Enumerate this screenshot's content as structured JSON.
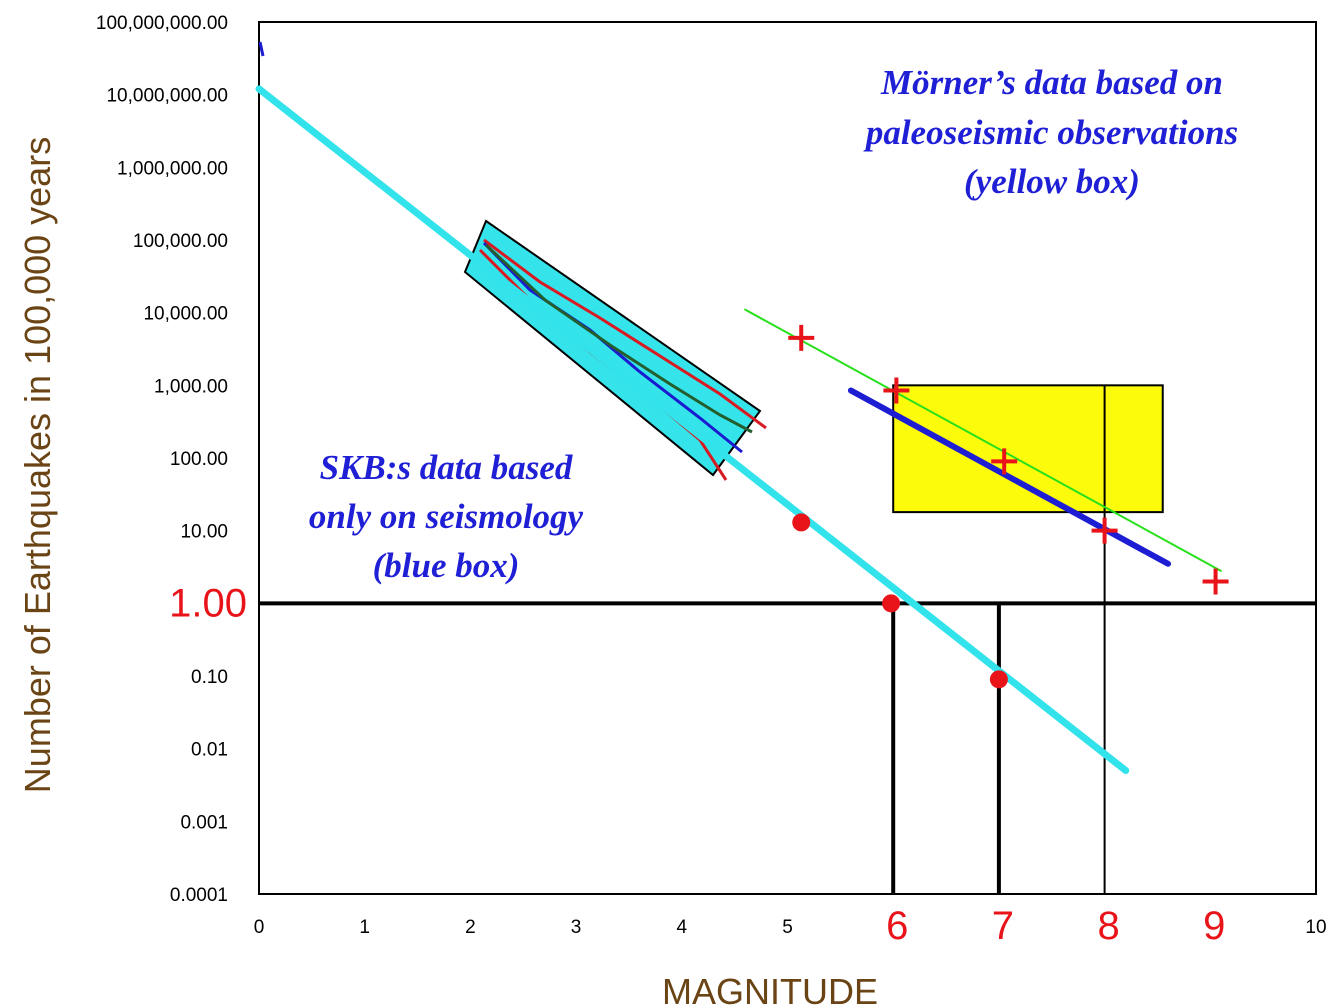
{
  "chart_data": {
    "type": "line",
    "title": "",
    "xlabel": "MAGNITUDE",
    "ylabel": "Number of Earthquakes in 100,000  years",
    "xlim": [
      0,
      10
    ],
    "ylim": [
      0.0001,
      100000000
    ],
    "yscale": "log",
    "grid": false,
    "x_ticks": [
      {
        "value": 0,
        "label": "0",
        "emphasized": false
      },
      {
        "value": 1,
        "label": "1",
        "emphasized": false
      },
      {
        "value": 2,
        "label": "2",
        "emphasized": false
      },
      {
        "value": 3,
        "label": "3",
        "emphasized": false
      },
      {
        "value": 4,
        "label": "4",
        "emphasized": false
      },
      {
        "value": 5,
        "label": "5",
        "emphasized": false
      },
      {
        "value": 6,
        "label": "6",
        "emphasized": true
      },
      {
        "value": 7,
        "label": "7",
        "emphasized": true
      },
      {
        "value": 8,
        "label": "8",
        "emphasized": true
      },
      {
        "value": 9,
        "label": "9",
        "emphasized": true
      },
      {
        "value": 10,
        "label": "10",
        "emphasized": false
      }
    ],
    "y_ticks": [
      {
        "value": 100000000,
        "label": "100,000,000.00",
        "emphasized": false
      },
      {
        "value": 10000000,
        "label": "10,000,000.00",
        "emphasized": false
      },
      {
        "value": 1000000,
        "label": "1,000,000.00",
        "emphasized": false
      },
      {
        "value": 100000,
        "label": "100,000.00",
        "emphasized": false
      },
      {
        "value": 10000,
        "label": "10,000.00",
        "emphasized": false
      },
      {
        "value": 1000,
        "label": "1,000.00",
        "emphasized": false
      },
      {
        "value": 100,
        "label": "100.00",
        "emphasized": false
      },
      {
        "value": 10,
        "label": "10.00",
        "emphasized": false
      },
      {
        "value": 1,
        "label": "1.00",
        "emphasized": true
      },
      {
        "value": 0.1,
        "label": "0.10",
        "emphasized": false
      },
      {
        "value": 0.01,
        "label": "0.01",
        "emphasized": false
      },
      {
        "value": 0.001,
        "label": "0.001",
        "emphasized": false
      },
      {
        "value": 0.0001,
        "label": "0.0001",
        "emphasized": false
      }
    ],
    "series": [
      {
        "kind": "cyan-fit-line",
        "color": "#33e3ec",
        "x": [
          0,
          8.2
        ],
        "y": [
          12000000,
          0.005
        ]
      },
      {
        "kind": "green-line",
        "color": "#27e01b",
        "x": [
          4.6,
          9.1
        ],
        "y": [
          11000,
          2.8
        ]
      },
      {
        "kind": "blue-line",
        "color": "#1d1dd4",
        "x": [
          5.6,
          8.6
        ],
        "y": [
          850,
          3.5
        ]
      },
      {
        "kind": "red-dots",
        "color": "#e8141a",
        "x": [
          5.13,
          5.98,
          7.0
        ],
        "y": [
          13,
          1.0,
          0.09
        ]
      },
      {
        "kind": "red-plus",
        "color": "#e8141a",
        "x": [
          5.13,
          6.03,
          7.05,
          8.0,
          9.05
        ],
        "y": [
          4500,
          850,
          90,
          10,
          2
        ]
      }
    ],
    "reference_lines": {
      "horizontal_y": 1,
      "vertical_x": [
        6,
        7,
        8
      ]
    },
    "boxes": [
      {
        "name": "blue box",
        "fill": "#35e4ea"
      },
      {
        "name": "yellow box",
        "fill": "#fbfb0b",
        "x": [
          6.0,
          8.55
        ],
        "y": [
          18,
          1000
        ]
      }
    ],
    "annotations": {
      "morner": [
        "Mörner’s data based on",
        "paleoseismic observations",
        "(yellow box)"
      ],
      "skb": [
        "SKB:s data based",
        "only on seismology",
        "(blue box)"
      ]
    }
  }
}
